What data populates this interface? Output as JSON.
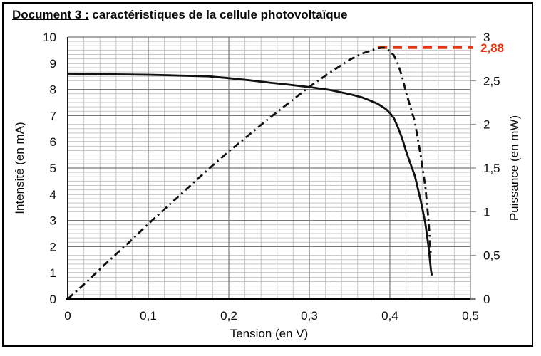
{
  "title": {
    "prefix": "Document 3 :",
    "rest": " caractéristiques de la cellule photovoltaïque"
  },
  "chart_data": {
    "type": "line",
    "title": "Document 3 : caractéristiques de la cellule photovoltaïque",
    "xlabel": "Tension  (en V)",
    "ylabel_left": "Intensité  (en mA)",
    "ylabel_right": "Puissance (en mW)",
    "xlim": [
      0,
      0.5
    ],
    "ylim_left": [
      0,
      10
    ],
    "ylim_right": [
      0,
      3
    ],
    "grid": {
      "on": true,
      "x_minor_divisions": 25,
      "x_major_every": 5,
      "y_minor_divisions": 60,
      "y_major_every": 6
    },
    "x_ticks": [
      {
        "v": 0,
        "label": "0"
      },
      {
        "v": 0.1,
        "label": "0,1"
      },
      {
        "v": 0.2,
        "label": "0,2"
      },
      {
        "v": 0.3,
        "label": "0,3"
      },
      {
        "v": 0.4,
        "label": "0,4"
      },
      {
        "v": 0.5,
        "label": "0,5"
      }
    ],
    "y_ticks_left": [
      {
        "v": 0,
        "label": "0"
      },
      {
        "v": 1,
        "label": "1"
      },
      {
        "v": 2,
        "label": "2"
      },
      {
        "v": 3,
        "label": "3"
      },
      {
        "v": 4,
        "label": "4"
      },
      {
        "v": 5,
        "label": "5"
      },
      {
        "v": 6,
        "label": "6"
      },
      {
        "v": 7,
        "label": "7"
      },
      {
        "v": 8,
        "label": "8"
      },
      {
        "v": 9,
        "label": "9"
      },
      {
        "v": 10,
        "label": "10"
      }
    ],
    "y_ticks_right": [
      {
        "v": 0,
        "label": "0"
      },
      {
        "v": 0.5,
        "label": "0,5"
      },
      {
        "v": 1,
        "label": "1"
      },
      {
        "v": 1.5,
        "label": "1,5"
      },
      {
        "v": 2,
        "label": "2"
      },
      {
        "v": 2.5,
        "label": "2,5"
      },
      {
        "v": 3,
        "label": "3"
      }
    ],
    "annotation": {
      "label": "2,88",
      "value": 2.88,
      "x_start": 0.385,
      "color": "#e8350f"
    },
    "colors": {
      "curve": "#111111",
      "grid_minor": "#c6c6c6",
      "grid_major": "#787878",
      "axis": "#000000",
      "annotation": "#e8350f"
    },
    "series": [
      {
        "name": "intensite",
        "axis": "left",
        "style": "solid",
        "points": [
          [
            0,
            8.6
          ],
          [
            0.025,
            8.59
          ],
          [
            0.05,
            8.58
          ],
          [
            0.075,
            8.57
          ],
          [
            0.1,
            8.56
          ],
          [
            0.125,
            8.54
          ],
          [
            0.15,
            8.52
          ],
          [
            0.175,
            8.5
          ],
          [
            0.2,
            8.43
          ],
          [
            0.225,
            8.35
          ],
          [
            0.25,
            8.26
          ],
          [
            0.275,
            8.18
          ],
          [
            0.3,
            8.09
          ],
          [
            0.325,
            7.98
          ],
          [
            0.35,
            7.82
          ],
          [
            0.365,
            7.7
          ],
          [
            0.375,
            7.58
          ],
          [
            0.385,
            7.45
          ],
          [
            0.395,
            7.25
          ],
          [
            0.4,
            7.1
          ],
          [
            0.405,
            6.9
          ],
          [
            0.41,
            6.55
          ],
          [
            0.415,
            6.15
          ],
          [
            0.42,
            5.65
          ],
          [
            0.425,
            5.2
          ],
          [
            0.431,
            4.7
          ],
          [
            0.438,
            3.8
          ],
          [
            0.444,
            2.9
          ],
          [
            0.448,
            2.0
          ],
          [
            0.451,
            1.1
          ],
          [
            0.452,
            0.9
          ]
        ]
      },
      {
        "name": "puissance",
        "axis": "right",
        "style": "dashdot",
        "points": [
          [
            0,
            0
          ],
          [
            0.025,
            0.21
          ],
          [
            0.05,
            0.43
          ],
          [
            0.075,
            0.64
          ],
          [
            0.1,
            0.86
          ],
          [
            0.125,
            1.07
          ],
          [
            0.15,
            1.28
          ],
          [
            0.175,
            1.49
          ],
          [
            0.2,
            1.69
          ],
          [
            0.225,
            1.88
          ],
          [
            0.25,
            2.07
          ],
          [
            0.275,
            2.25
          ],
          [
            0.3,
            2.43
          ],
          [
            0.325,
            2.59
          ],
          [
            0.35,
            2.74
          ],
          [
            0.365,
            2.81
          ],
          [
            0.375,
            2.84
          ],
          [
            0.385,
            2.87
          ],
          [
            0.392,
            2.88
          ],
          [
            0.4,
            2.84
          ],
          [
            0.405,
            2.79
          ],
          [
            0.41,
            2.69
          ],
          [
            0.415,
            2.55
          ],
          [
            0.42,
            2.37
          ],
          [
            0.425,
            2.21
          ],
          [
            0.431,
            2.03
          ],
          [
            0.438,
            1.66
          ],
          [
            0.444,
            1.29
          ],
          [
            0.448,
            0.9
          ],
          [
            0.451,
            0.49
          ]
        ]
      }
    ]
  }
}
